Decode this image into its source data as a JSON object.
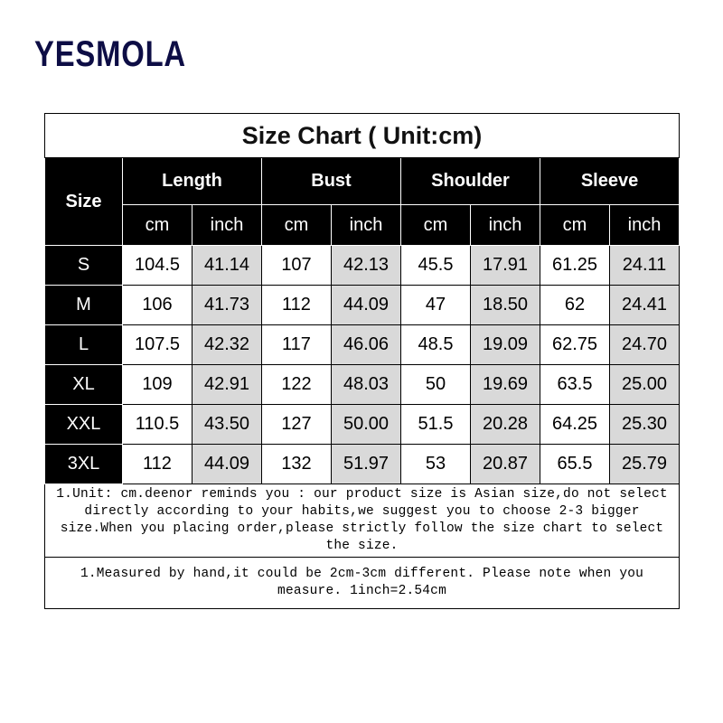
{
  "brand": "YESMOLA",
  "title": "Size Chart ( Unit:cm)",
  "size_header": "Size",
  "groups": [
    "Length",
    "Bust",
    "Shoulder",
    "Sleeve"
  ],
  "units": [
    "cm",
    "inch"
  ],
  "rows": [
    [
      "S",
      "104.5",
      "41.14",
      "107",
      "42.13",
      "45.5",
      "17.91",
      "61.25",
      "24.11"
    ],
    [
      "M",
      "106",
      "41.73",
      "112",
      "44.09",
      "47",
      "18.50",
      "62",
      "24.41"
    ],
    [
      "L",
      "107.5",
      "42.32",
      "117",
      "46.06",
      "48.5",
      "19.09",
      "62.75",
      "24.70"
    ],
    [
      "XL",
      "109",
      "42.91",
      "122",
      "48.03",
      "50",
      "19.69",
      "63.5",
      "25.00"
    ],
    [
      "XXL",
      "110.5",
      "43.50",
      "127",
      "50.00",
      "51.5",
      "20.28",
      "64.25",
      "25.30"
    ],
    [
      "3XL",
      "112",
      "44.09",
      "132",
      "51.97",
      "53",
      "20.87",
      "65.5",
      "25.79"
    ]
  ],
  "notes": [
    "1.Unit: cm.deenor reminds you : our product size is Asian size,do not select directly according to your habits,we suggest you to choose 2-3 bigger size.When you placing order,please strictly follow the size chart to select the size.",
    "1.Measured by hand,it could be 2cm-3cm different. Please note when you measure. 1inch=2.54cm"
  ]
}
